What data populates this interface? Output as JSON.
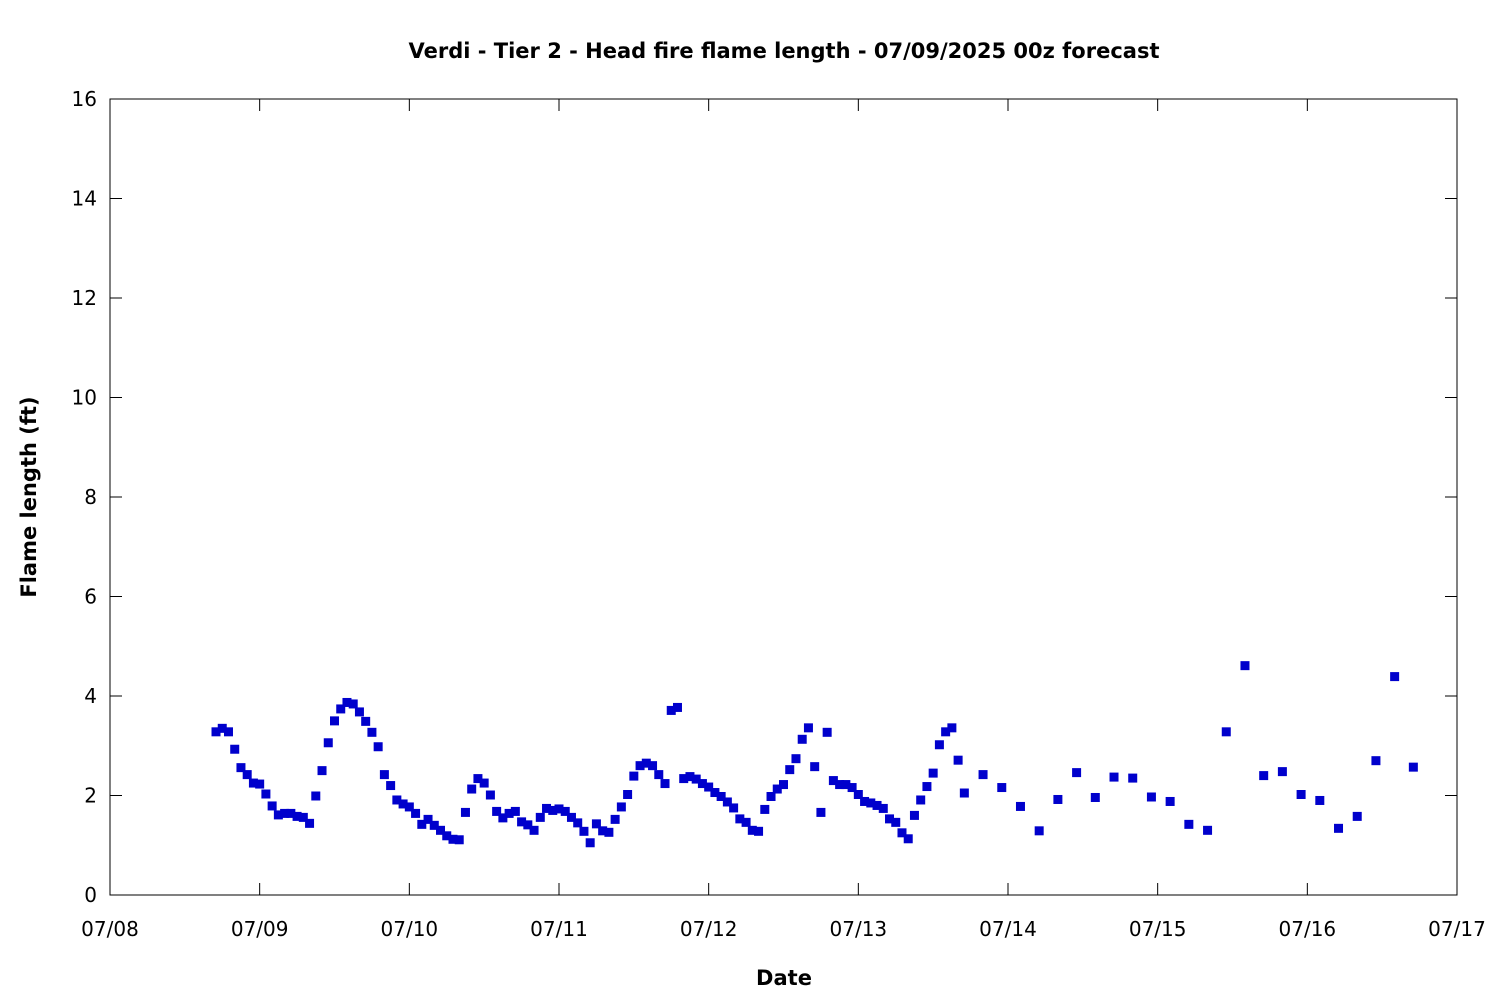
{
  "chart_data": {
    "type": "scatter",
    "title": "Verdi - Tier 2 - Head fire flame length - 07/09/2025 00z forecast",
    "xlabel": "Date",
    "ylabel": "Flame length (ft)",
    "xlim": [
      "2025-07-08T00:00",
      "2025-07-17T00:00"
    ],
    "ylim": [
      0,
      16
    ],
    "x_ticks": [
      "07/08",
      "07/09",
      "07/10",
      "07/11",
      "07/12",
      "07/13",
      "07/14",
      "07/15",
      "07/16",
      "07/17"
    ],
    "y_ticks": [
      "0",
      "2",
      "4",
      "6",
      "8",
      "10",
      "12",
      "14",
      "16"
    ],
    "grid": false,
    "legend": "none",
    "marker_color": "#0000cc",
    "series": [
      {
        "x": [
          "2025-07-08T17:00",
          "2025-07-08T18:00",
          "2025-07-08T19:00",
          "2025-07-08T20:00",
          "2025-07-08T21:00",
          "2025-07-08T22:00",
          "2025-07-08T23:00",
          "2025-07-09T00:00",
          "2025-07-09T01:00",
          "2025-07-09T02:00",
          "2025-07-09T03:00",
          "2025-07-09T04:00",
          "2025-07-09T05:00",
          "2025-07-09T06:00",
          "2025-07-09T07:00",
          "2025-07-09T08:00",
          "2025-07-09T09:00",
          "2025-07-09T10:00",
          "2025-07-09T11:00",
          "2025-07-09T12:00",
          "2025-07-09T13:00",
          "2025-07-09T14:00",
          "2025-07-09T15:00",
          "2025-07-09T16:00",
          "2025-07-09T17:00",
          "2025-07-09T18:00",
          "2025-07-09T19:00",
          "2025-07-09T20:00",
          "2025-07-09T21:00",
          "2025-07-09T22:00",
          "2025-07-09T23:00",
          "2025-07-10T00:00",
          "2025-07-10T01:00",
          "2025-07-10T02:00",
          "2025-07-10T03:00",
          "2025-07-10T04:00",
          "2025-07-10T05:00",
          "2025-07-10T06:00",
          "2025-07-10T07:00",
          "2025-07-10T08:00",
          "2025-07-10T09:00",
          "2025-07-10T10:00",
          "2025-07-10T11:00",
          "2025-07-10T12:00",
          "2025-07-10T13:00",
          "2025-07-10T14:00",
          "2025-07-10T15:00",
          "2025-07-10T16:00",
          "2025-07-10T17:00",
          "2025-07-10T18:00",
          "2025-07-10T19:00",
          "2025-07-10T20:00",
          "2025-07-10T21:00",
          "2025-07-10T22:00",
          "2025-07-10T23:00",
          "2025-07-11T00:00",
          "2025-07-11T01:00",
          "2025-07-11T02:00",
          "2025-07-11T03:00",
          "2025-07-11T04:00",
          "2025-07-11T05:00",
          "2025-07-11T06:00",
          "2025-07-11T07:00",
          "2025-07-11T08:00",
          "2025-07-11T09:00",
          "2025-07-11T10:00",
          "2025-07-11T11:00",
          "2025-07-11T12:00",
          "2025-07-11T13:00",
          "2025-07-11T14:00",
          "2025-07-11T15:00",
          "2025-07-11T16:00",
          "2025-07-11T17:00",
          "2025-07-11T18:00",
          "2025-07-11T19:00",
          "2025-07-11T20:00",
          "2025-07-11T21:00",
          "2025-07-11T22:00",
          "2025-07-11T23:00",
          "2025-07-12T00:00",
          "2025-07-12T01:00",
          "2025-07-12T02:00",
          "2025-07-12T03:00",
          "2025-07-12T04:00",
          "2025-07-12T05:00",
          "2025-07-12T06:00",
          "2025-07-12T07:00",
          "2025-07-12T08:00",
          "2025-07-12T09:00",
          "2025-07-12T10:00",
          "2025-07-12T11:00",
          "2025-07-12T12:00",
          "2025-07-12T13:00",
          "2025-07-12T14:00",
          "2025-07-12T15:00",
          "2025-07-12T16:00",
          "2025-07-12T17:00",
          "2025-07-12T18:00",
          "2025-07-12T19:00",
          "2025-07-12T20:00",
          "2025-07-12T21:00",
          "2025-07-12T22:00",
          "2025-07-12T23:00",
          "2025-07-13T00:00",
          "2025-07-13T01:00",
          "2025-07-13T02:00",
          "2025-07-13T03:00",
          "2025-07-13T04:00",
          "2025-07-13T05:00",
          "2025-07-13T06:00",
          "2025-07-13T07:00",
          "2025-07-13T08:00",
          "2025-07-13T09:00",
          "2025-07-13T10:00",
          "2025-07-13T11:00",
          "2025-07-13T12:00",
          "2025-07-13T13:00",
          "2025-07-13T14:00",
          "2025-07-13T15:00",
          "2025-07-13T16:00",
          "2025-07-13T17:00",
          "2025-07-13T20:00",
          "2025-07-13T23:00",
          "2025-07-14T02:00",
          "2025-07-14T05:00",
          "2025-07-14T08:00",
          "2025-07-14T11:00",
          "2025-07-14T14:00",
          "2025-07-14T17:00",
          "2025-07-14T20:00",
          "2025-07-14T23:00",
          "2025-07-15T02:00",
          "2025-07-15T05:00",
          "2025-07-15T08:00",
          "2025-07-15T11:00",
          "2025-07-15T14:00",
          "2025-07-15T17:00",
          "2025-07-15T20:00",
          "2025-07-15T23:00",
          "2025-07-16T02:00",
          "2025-07-16T05:00",
          "2025-07-16T08:00",
          "2025-07-16T11:00",
          "2025-07-16T14:00",
          "2025-07-16T17:00"
        ],
        "values": [
          3.28,
          3.35,
          3.28,
          2.93,
          2.56,
          2.42,
          2.25,
          2.23,
          2.03,
          1.79,
          1.61,
          1.64,
          1.64,
          1.58,
          1.56,
          1.44,
          1.99,
          2.5,
          3.06,
          3.5,
          3.74,
          3.87,
          3.84,
          3.68,
          3.49,
          3.27,
          2.98,
          2.42,
          2.2,
          1.91,
          1.83,
          1.77,
          1.64,
          1.42,
          1.52,
          1.4,
          1.3,
          1.19,
          1.12,
          1.11,
          1.66,
          2.13,
          2.34,
          2.25,
          2.01,
          1.68,
          1.55,
          1.64,
          1.68,
          1.47,
          1.41,
          1.3,
          1.56,
          1.74,
          1.7,
          1.73,
          1.68,
          1.56,
          1.45,
          1.28,
          1.05,
          1.43,
          1.29,
          1.26,
          1.52,
          1.77,
          2.02,
          2.39,
          2.6,
          2.65,
          2.6,
          2.42,
          2.24,
          3.71,
          3.77,
          2.34,
          2.38,
          2.33,
          2.24,
          2.17,
          2.06,
          1.98,
          1.87,
          1.75,
          1.53,
          1.46,
          1.3,
          1.28,
          1.72,
          1.98,
          2.13,
          2.22,
          2.52,
          2.74,
          3.13,
          3.36,
          2.58,
          1.66,
          3.27,
          2.3,
          2.22,
          2.22,
          2.16,
          2.02,
          1.88,
          1.85,
          1.8,
          1.74,
          1.53,
          1.46,
          1.25,
          1.13,
          1.6,
          1.91,
          2.18,
          2.45,
          3.02,
          3.28,
          3.36,
          2.71,
          2.05,
          2.42,
          2.16,
          1.78,
          1.29,
          1.92,
          2.46,
          1.96,
          2.37,
          2.35,
          1.97,
          1.88,
          1.42,
          1.3,
          3.28,
          4.61,
          2.4,
          2.48,
          2.02,
          1.9,
          1.34,
          1.58,
          2.7,
          4.39,
          2.57
        ]
      }
    ]
  }
}
